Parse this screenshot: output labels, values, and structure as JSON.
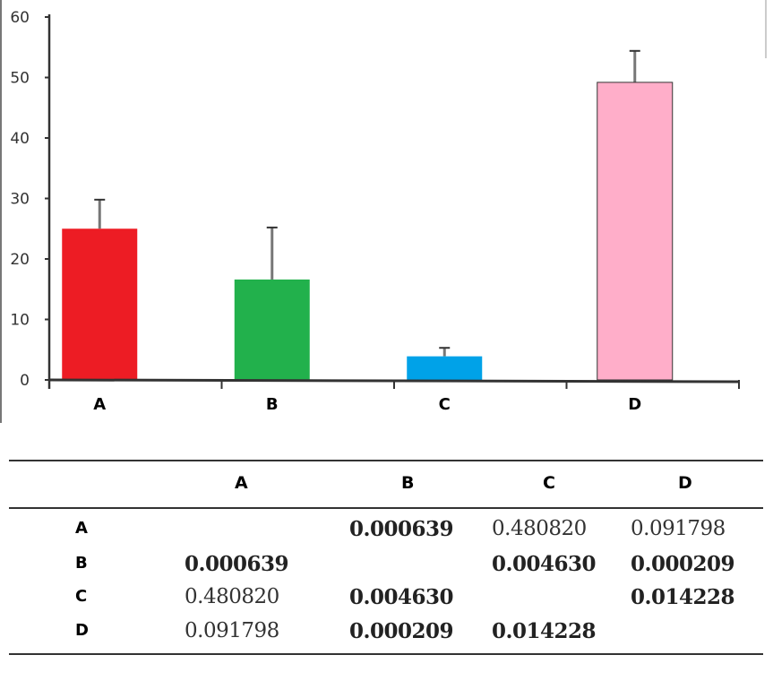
{
  "chart_data": {
    "type": "bar",
    "categories": [
      "A",
      "B",
      "C",
      "D"
    ],
    "values": [
      25,
      16.6,
      3.9,
      49.2
    ],
    "error_upper": [
      29.8,
      25.2,
      5.3,
      54.4
    ],
    "colors": [
      "#ed1c24",
      "#22b14c",
      "#00a2e8",
      "#ffaec9"
    ],
    "ylim": [
      0,
      60
    ],
    "yticks": [
      0,
      10,
      20,
      30,
      40,
      50,
      60
    ],
    "title": "",
    "xlabel": "",
    "ylabel": "",
    "grid": false
  },
  "table": {
    "headers": [
      "A",
      "B",
      "C",
      "D"
    ],
    "rows": [
      {
        "label": "A",
        "cells": [
          "",
          "0.000639",
          "0.480820",
          "0.091798"
        ],
        "bold": [
          false,
          true,
          false,
          false
        ]
      },
      {
        "label": "B",
        "cells": [
          "0.000639",
          "",
          "0.004630",
          "0.000209"
        ],
        "bold": [
          true,
          false,
          true,
          true
        ]
      },
      {
        "label": "C",
        "cells": [
          "0.480820",
          "0.004630",
          "",
          "0.014228"
        ],
        "bold": [
          false,
          true,
          false,
          true
        ]
      },
      {
        "label": "D",
        "cells": [
          "0.091798",
          "0.000209",
          "0.014228",
          ""
        ],
        "bold": [
          false,
          true,
          true,
          false
        ]
      }
    ]
  }
}
